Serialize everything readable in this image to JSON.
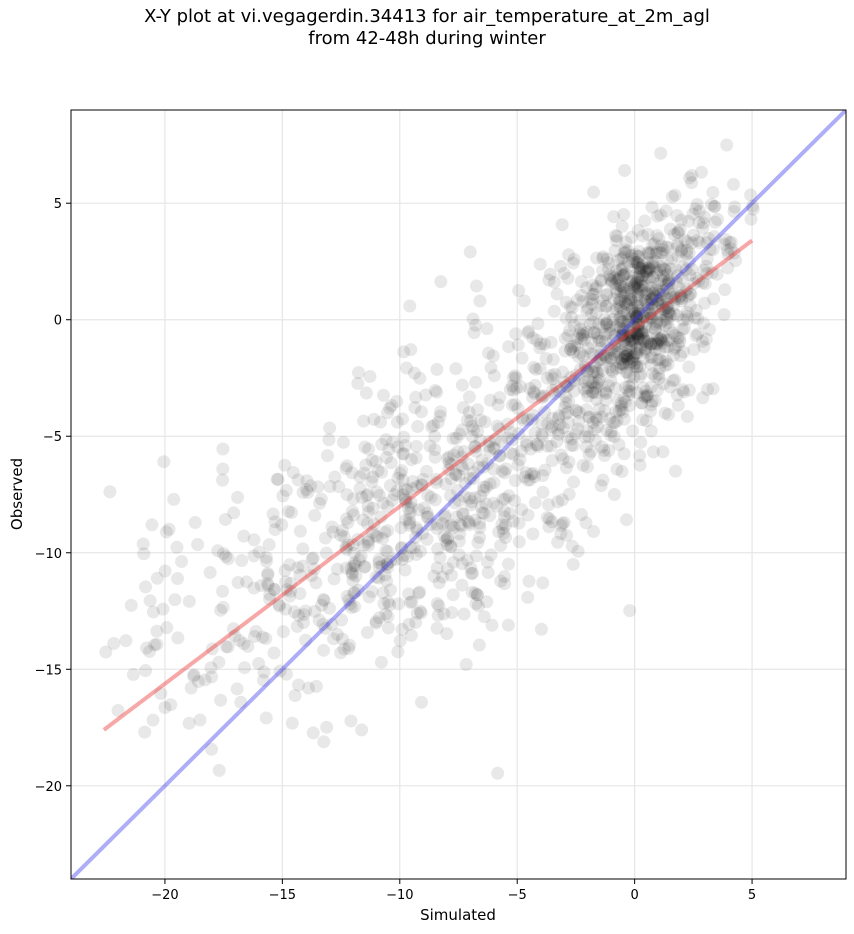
{
  "chart_data": {
    "type": "scatter",
    "title_line1": "X-Y plot at vi.vegagerdin.34413 for air_temperature_at_2m_agl",
    "title_line2": "from 42-48h during winter",
    "xlabel": "Simulated",
    "ylabel": "Observed",
    "xlim": [
      -24,
      9
    ],
    "ylim": [
      -24,
      9
    ],
    "xticks": [
      -20,
      -15,
      -10,
      -5,
      0,
      5
    ],
    "yticks": [
      -20,
      -15,
      -10,
      -5,
      0,
      5
    ],
    "x_tick_labels": [
      "−20",
      "−15",
      "−10",
      "−5",
      "0",
      "5"
    ],
    "y_tick_labels": [
      "−20",
      "−15",
      "−10",
      "−5",
      "0",
      "5"
    ],
    "grid": true,
    "point_color": "#000000",
    "point_opacity": 0.09,
    "identity_line": {
      "x": [
        -24,
        9
      ],
      "y": [
        -24,
        9
      ],
      "color": "#3333ee",
      "opacity": 0.4
    },
    "regression_line": {
      "x": [
        -22.6,
        5.0
      ],
      "y": [
        -17.6,
        3.4
      ],
      "color": "#ee2222",
      "opacity": 0.4
    },
    "point_clusters": [
      {
        "cx": 0.5,
        "cy": 0.5,
        "sx": 1.1,
        "sy": 1.7,
        "n": 420
      },
      {
        "cx": -1.0,
        "cy": -1.5,
        "sx": 1.6,
        "sy": 2.2,
        "n": 260
      },
      {
        "cx": -4.0,
        "cy": -4.0,
        "sx": 2.2,
        "sy": 2.6,
        "n": 200
      },
      {
        "cx": -8.5,
        "cy": -8.0,
        "sx": 2.6,
        "sy": 2.6,
        "n": 330
      },
      {
        "cx": -13.0,
        "cy": -11.0,
        "sx": 2.8,
        "sy": 2.8,
        "n": 200
      },
      {
        "cx": -18.5,
        "cy": -13.5,
        "sx": 2.2,
        "sy": 3.2,
        "n": 80
      },
      {
        "cx": 2.5,
        "cy": 3.5,
        "sx": 1.3,
        "sy": 1.8,
        "n": 90
      }
    ],
    "seed": 7
  }
}
